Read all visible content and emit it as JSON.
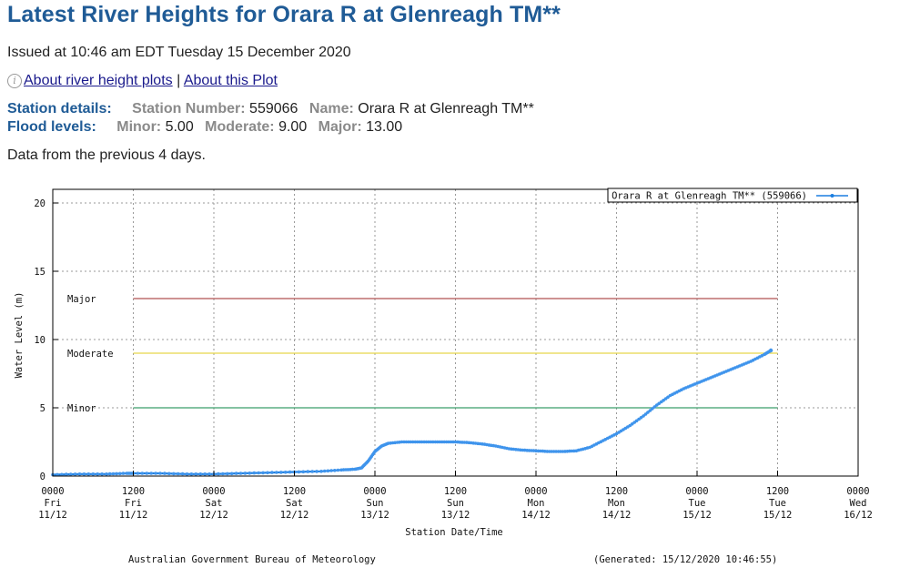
{
  "page": {
    "title": "Latest River Heights for Orara R at Glenreagh TM**",
    "issued": "Issued at 10:46 am EDT Tuesday 15 December 2020",
    "link_about_plots": "About river height plots",
    "link_separator": "|",
    "link_about_plot": "About this Plot",
    "station_label": "Station details:",
    "station_number_label": "Station Number:",
    "station_number": "559066",
    "name_label": "Name:",
    "name": "Orara R at Glenreagh TM**",
    "flood_label": "Flood levels:",
    "minor_label": "Minor:",
    "minor": "5.00",
    "moderate_label": "Moderate:",
    "moderate": "9.00",
    "major_label": "Major:",
    "major": "13.00",
    "data_note": "Data from the previous 4 days."
  },
  "colors": {
    "title": "#1f5b96",
    "series": "#1b7ee0",
    "major": "#b05050",
    "moderate": "#e6d84a",
    "minor": "#3a9e6a"
  },
  "chart_data": {
    "type": "line",
    "ylabel": "Water Level (m)",
    "xlabel": "Station Date/Time",
    "ylim": [
      0,
      21
    ],
    "yticks": [
      0,
      5,
      10,
      15,
      20
    ],
    "xlim": [
      0,
      120
    ],
    "grid": true,
    "legend": "top-right",
    "legend_label": "Orara R at Glenreagh TM** (559066)",
    "xticks": [
      {
        "t": 0,
        "l1": "0000",
        "l2": "Fri",
        "l3": "11/12"
      },
      {
        "t": 12,
        "l1": "1200",
        "l2": "Fri",
        "l3": "11/12"
      },
      {
        "t": 24,
        "l1": "0000",
        "l2": "Sat",
        "l3": "12/12"
      },
      {
        "t": 36,
        "l1": "1200",
        "l2": "Sat",
        "l3": "12/12"
      },
      {
        "t": 48,
        "l1": "0000",
        "l2": "Sun",
        "l3": "13/12"
      },
      {
        "t": 60,
        "l1": "1200",
        "l2": "Sun",
        "l3": "13/12"
      },
      {
        "t": 72,
        "l1": "0000",
        "l2": "Mon",
        "l3": "14/12"
      },
      {
        "t": 84,
        "l1": "1200",
        "l2": "Mon",
        "l3": "14/12"
      },
      {
        "t": 96,
        "l1": "0000",
        "l2": "Tue",
        "l3": "15/12"
      },
      {
        "t": 108,
        "l1": "1200",
        "l2": "Tue",
        "l3": "15/12"
      },
      {
        "t": 120,
        "l1": "0000",
        "l2": "Wed",
        "l3": "16/12"
      }
    ],
    "flood_levels": [
      {
        "name": "Major",
        "value": 13
      },
      {
        "name": "Moderate",
        "value": 9
      },
      {
        "name": "Minor",
        "value": 5
      }
    ],
    "flood_line_range": [
      12,
      108
    ],
    "series": [
      {
        "name": "Orara R at Glenreagh TM** (559066)",
        "x": [
          0,
          4,
          8,
          11,
          12,
          16,
          20,
          24,
          28,
          32,
          36,
          40,
          43,
          45,
          46,
          47,
          48,
          49,
          50,
          52,
          54,
          56,
          58,
          60,
          62,
          64,
          66,
          68,
          70,
          72,
          74,
          76,
          78,
          80,
          82,
          84,
          86,
          88,
          90,
          92,
          94,
          96,
          98,
          100,
          102,
          104,
          106,
          107
        ],
        "values": [
          0.1,
          0.15,
          0.15,
          0.2,
          0.2,
          0.2,
          0.15,
          0.15,
          0.2,
          0.25,
          0.3,
          0.35,
          0.45,
          0.5,
          0.6,
          1.1,
          1.8,
          2.2,
          2.4,
          2.5,
          2.5,
          2.5,
          2.5,
          2.5,
          2.45,
          2.35,
          2.2,
          2.0,
          1.9,
          1.85,
          1.8,
          1.8,
          1.85,
          2.1,
          2.6,
          3.1,
          3.7,
          4.4,
          5.2,
          5.9,
          6.4,
          6.8,
          7.2,
          7.6,
          8.0,
          8.4,
          8.9,
          9.2
        ]
      }
    ],
    "footer_left": "Australian Government Bureau of Meteorology",
    "footer_right": "(Generated: 15/12/2020 10:46:55)"
  }
}
